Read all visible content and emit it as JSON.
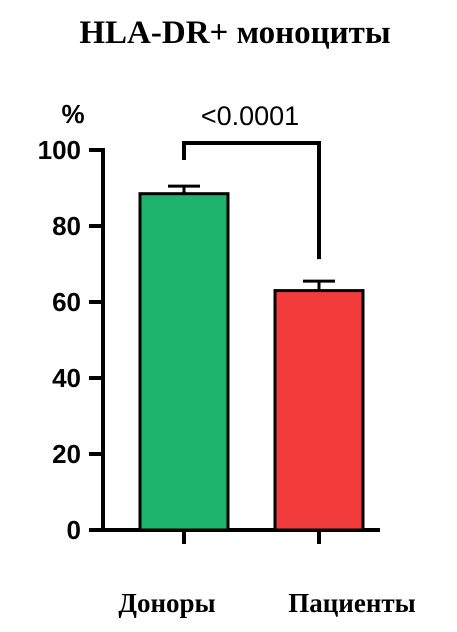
{
  "chart_data": {
    "type": "bar",
    "title": "HLA-DR+ моноциты",
    "ylabel": "%",
    "xlabel": "",
    "ylim": [
      0,
      100
    ],
    "yticks": [
      "0",
      "20",
      "40",
      "60",
      "80",
      "100"
    ],
    "categories": [
      "Доноры",
      "Пациенты"
    ],
    "values": [
      88.5,
      63
    ],
    "errors": [
      2,
      2.5
    ],
    "bar_colors": [
      "#1db36b",
      "#f23c3c"
    ],
    "significance": {
      "between": [
        0,
        1
      ],
      "label": "<0.0001"
    },
    "grid": false,
    "legend": "none"
  }
}
